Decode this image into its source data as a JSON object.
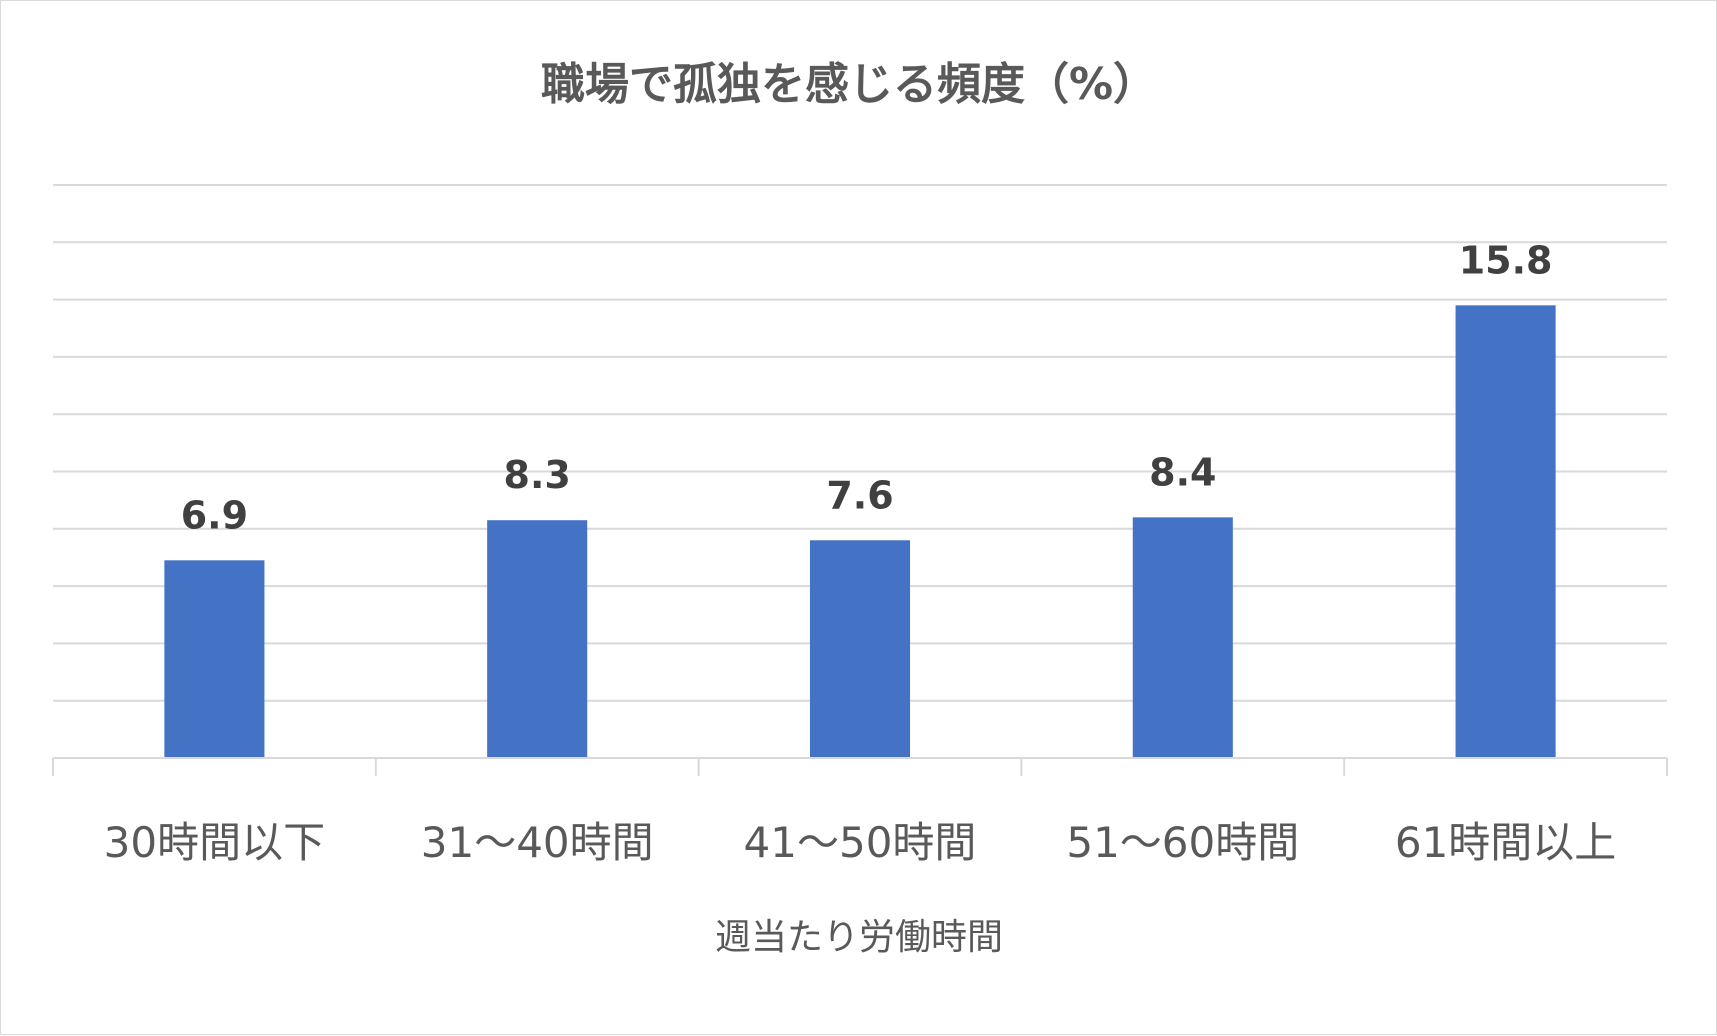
{
  "chart_data": {
    "type": "bar",
    "title": "職場で孤独を感じる頻度（%）",
    "xlabel": "週当たり労働時間",
    "ylabel": "",
    "categories": [
      "30時間以下",
      "31～40時間",
      "41～50時間",
      "51～60時間",
      "61時間以上"
    ],
    "values": [
      6.9,
      8.3,
      7.6,
      8.4,
      15.8
    ],
    "data_labels": [
      "6.9",
      "8.3",
      "7.6",
      "8.4",
      "15.8"
    ],
    "ylim": [
      0,
      20
    ],
    "grid": true,
    "legend": "none",
    "bar_color": "#4472C4",
    "gridline_color": "#d9d9d9"
  }
}
